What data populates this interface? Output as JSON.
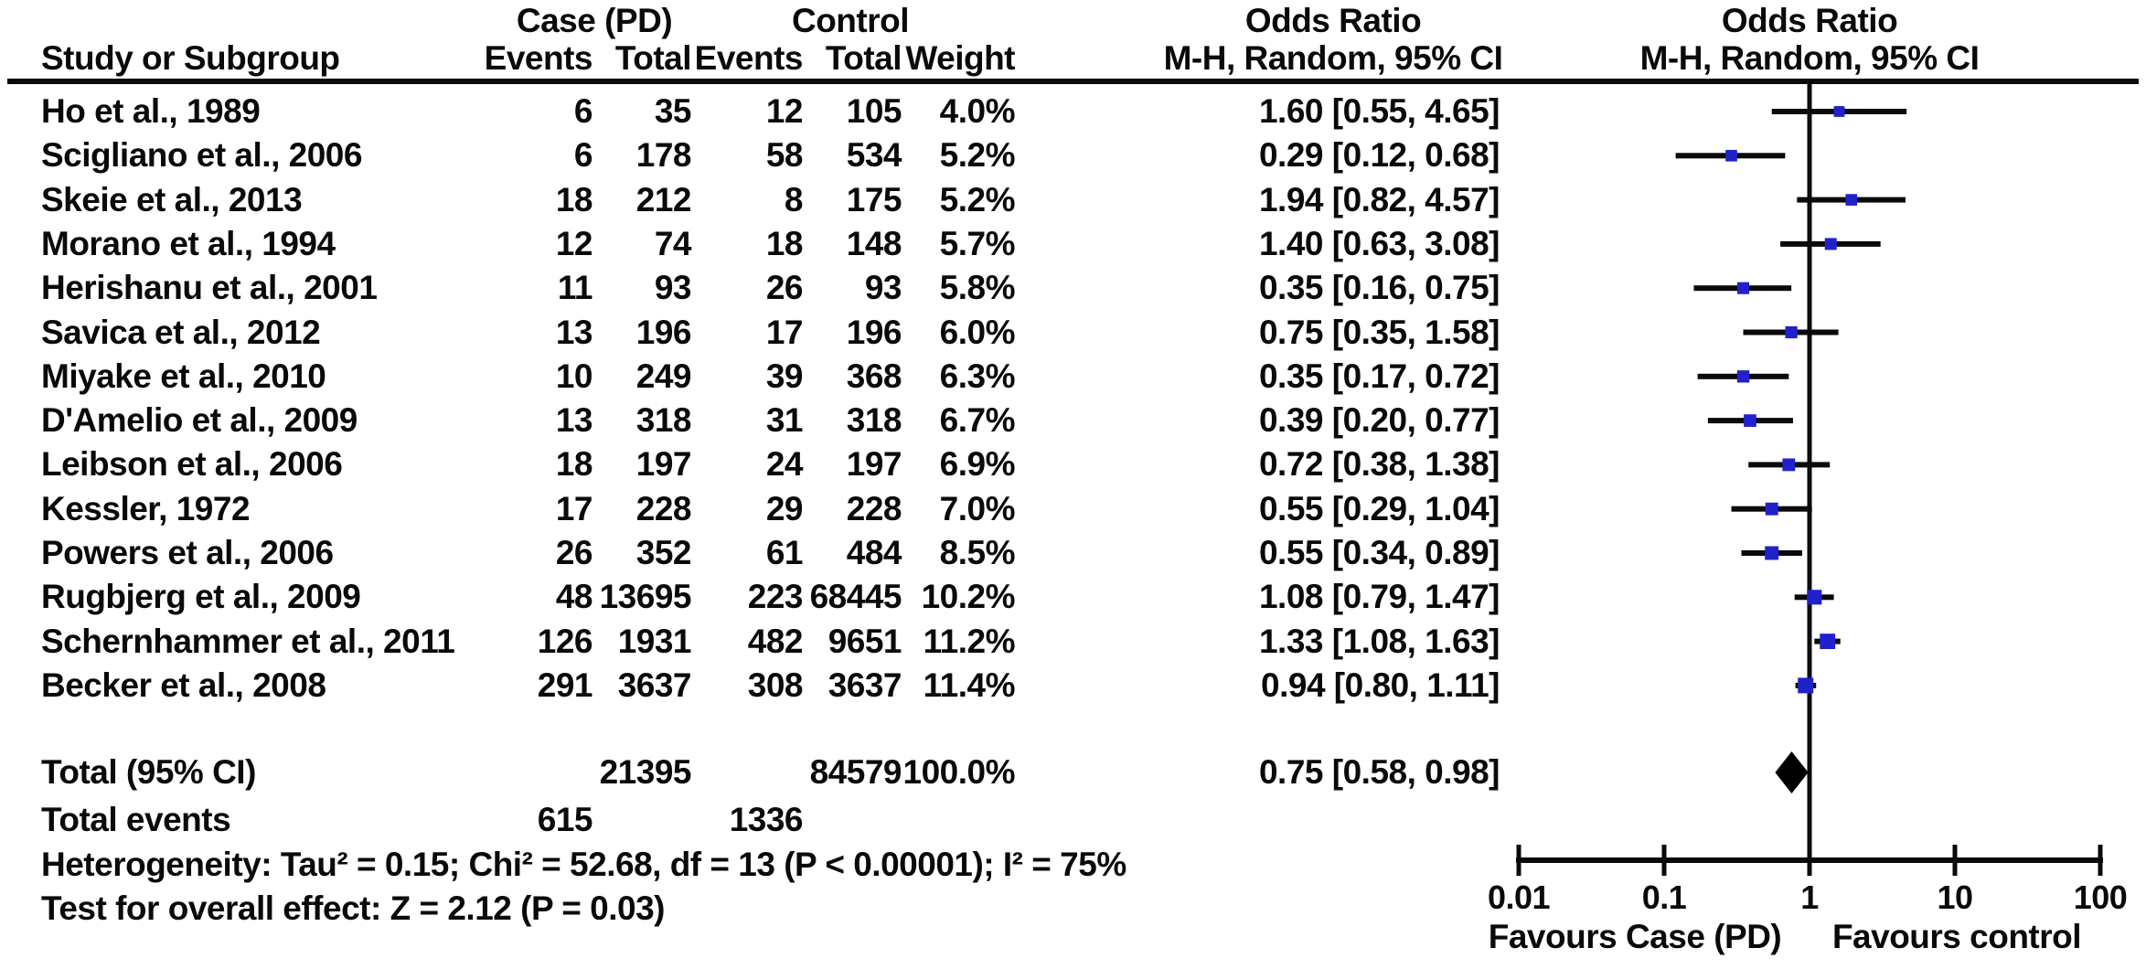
{
  "header": {
    "group_case": "Case (PD)",
    "group_control": "Control",
    "odds_ratio_text_col": "Odds Ratio",
    "odds_ratio_plot_col": "Odds Ratio",
    "col_study": "Study or Subgroup",
    "col_case_events": "Events",
    "col_case_total": "Total",
    "col_control_events": "Events",
    "col_control_total": "Total",
    "col_weight": "Weight",
    "col_mh_text": "M-H, Random, 95% CI",
    "col_mh_plot": "M-H, Random, 95% CI"
  },
  "footer": {
    "total_label": "Total (95% CI)",
    "total_events_label": "Total events",
    "total_events_case": "615",
    "total_events_control": "1336",
    "heterogeneity": "Heterogeneity: Tau² = 0.15; Chi² = 52.68, df = 13 (P < 0.00001); I² = 75%",
    "overall_effect": "Test for overall effect: Z = 2.12 (P = 0.03)"
  },
  "colors": {
    "marker_blue": "#2121cc",
    "line_black": "#0a0a0a",
    "diamond_black": "#000000"
  },
  "chart_data": {
    "type": "scatter",
    "subtype": "forest_plot_meta_analysis",
    "effect_measure": "Odds Ratio, M-H, Random, 95% CI",
    "x_scale": "log",
    "xlim": [
      0.01,
      100
    ],
    "x_tick_values": [
      0.01,
      0.1,
      1,
      10,
      100
    ],
    "x_tick_labels": [
      "0.01",
      "0.1",
      "1",
      "10",
      "100"
    ],
    "favours_left": "Favours Case (PD)",
    "favours_right": "Favours control",
    "studies": [
      {
        "name": "Ho et al., 1989",
        "case_events": 6,
        "case_total": 35,
        "control_events": 12,
        "control_total": 105,
        "weight": "4.0%",
        "weight_pct": 4.0,
        "or_text": "1.60 [0.55, 4.65]",
        "or": 1.6,
        "ci_low": 0.55,
        "ci_high": 4.65
      },
      {
        "name": "Scigliano et al., 2006",
        "case_events": 6,
        "case_total": 178,
        "control_events": 58,
        "control_total": 534,
        "weight": "5.2%",
        "weight_pct": 5.2,
        "or_text": "0.29 [0.12, 0.68]",
        "or": 0.29,
        "ci_low": 0.12,
        "ci_high": 0.68
      },
      {
        "name": "Skeie et al., 2013",
        "case_events": 18,
        "case_total": 212,
        "control_events": 8,
        "control_total": 175,
        "weight": "5.2%",
        "weight_pct": 5.2,
        "or_text": "1.94 [0.82, 4.57]",
        "or": 1.94,
        "ci_low": 0.82,
        "ci_high": 4.57
      },
      {
        "name": "Morano et al., 1994",
        "case_events": 12,
        "case_total": 74,
        "control_events": 18,
        "control_total": 148,
        "weight": "5.7%",
        "weight_pct": 5.7,
        "or_text": "1.40 [0.63, 3.08]",
        "or": 1.4,
        "ci_low": 0.63,
        "ci_high": 3.08
      },
      {
        "name": "Herishanu et al., 2001",
        "case_events": 11,
        "case_total": 93,
        "control_events": 26,
        "control_total": 93,
        "weight": "5.8%",
        "weight_pct": 5.8,
        "or_text": "0.35 [0.16, 0.75]",
        "or": 0.35,
        "ci_low": 0.16,
        "ci_high": 0.75
      },
      {
        "name": "Savica et al., 2012",
        "case_events": 13,
        "case_total": 196,
        "control_events": 17,
        "control_total": 196,
        "weight": "6.0%",
        "weight_pct": 6.0,
        "or_text": "0.75 [0.35, 1.58]",
        "or": 0.75,
        "ci_low": 0.35,
        "ci_high": 1.58
      },
      {
        "name": "Miyake et al., 2010",
        "case_events": 10,
        "case_total": 249,
        "control_events": 39,
        "control_total": 368,
        "weight": "6.3%",
        "weight_pct": 6.3,
        "or_text": "0.35 [0.17, 0.72]",
        "or": 0.35,
        "ci_low": 0.17,
        "ci_high": 0.72
      },
      {
        "name": "D'Amelio et al., 2009",
        "case_events": 13,
        "case_total": 318,
        "control_events": 31,
        "control_total": 318,
        "weight": "6.7%",
        "weight_pct": 6.7,
        "or_text": "0.39 [0.20, 0.77]",
        "or": 0.39,
        "ci_low": 0.2,
        "ci_high": 0.77
      },
      {
        "name": "Leibson et al., 2006",
        "case_events": 18,
        "case_total": 197,
        "control_events": 24,
        "control_total": 197,
        "weight": "6.9%",
        "weight_pct": 6.9,
        "or_text": "0.72 [0.38, 1.38]",
        "or": 0.72,
        "ci_low": 0.38,
        "ci_high": 1.38
      },
      {
        "name": "Kessler, 1972",
        "case_events": 17,
        "case_total": 228,
        "control_events": 29,
        "control_total": 228,
        "weight": "7.0%",
        "weight_pct": 7.0,
        "or_text": "0.55 [0.29, 1.04]",
        "or": 0.55,
        "ci_low": 0.29,
        "ci_high": 1.04
      },
      {
        "name": "Powers et al., 2006",
        "case_events": 26,
        "case_total": 352,
        "control_events": 61,
        "control_total": 484,
        "weight": "8.5%",
        "weight_pct": 8.5,
        "or_text": "0.55 [0.34, 0.89]",
        "or": 0.55,
        "ci_low": 0.34,
        "ci_high": 0.89
      },
      {
        "name": "Rugbjerg et al., 2009",
        "case_events": 48,
        "case_total": 13695,
        "control_events": 223,
        "control_total": 68445,
        "weight": "10.2%",
        "weight_pct": 10.2,
        "or_text": "1.08 [0.79, 1.47]",
        "or": 1.08,
        "ci_low": 0.79,
        "ci_high": 1.47
      },
      {
        "name": "Schernhammer et al., 2011",
        "case_events": 126,
        "case_total": 1931,
        "control_events": 482,
        "control_total": 9651,
        "weight": "11.2%",
        "weight_pct": 11.2,
        "or_text": "1.33 [1.08, 1.63]",
        "or": 1.33,
        "ci_low": 1.08,
        "ci_high": 1.63
      },
      {
        "name": "Becker et al., 2008",
        "case_events": 291,
        "case_total": 3637,
        "control_events": 308,
        "control_total": 3637,
        "weight": "11.4%",
        "weight_pct": 11.4,
        "or_text": "0.94 [0.80, 1.11]",
        "or": 0.94,
        "ci_low": 0.8,
        "ci_high": 1.11
      }
    ],
    "total": {
      "case_total": 21395,
      "control_total": 84579,
      "weight": "100.0%",
      "or_text": "0.75 [0.58, 0.98]",
      "or": 0.75,
      "ci_low": 0.58,
      "ci_high": 0.98
    }
  }
}
